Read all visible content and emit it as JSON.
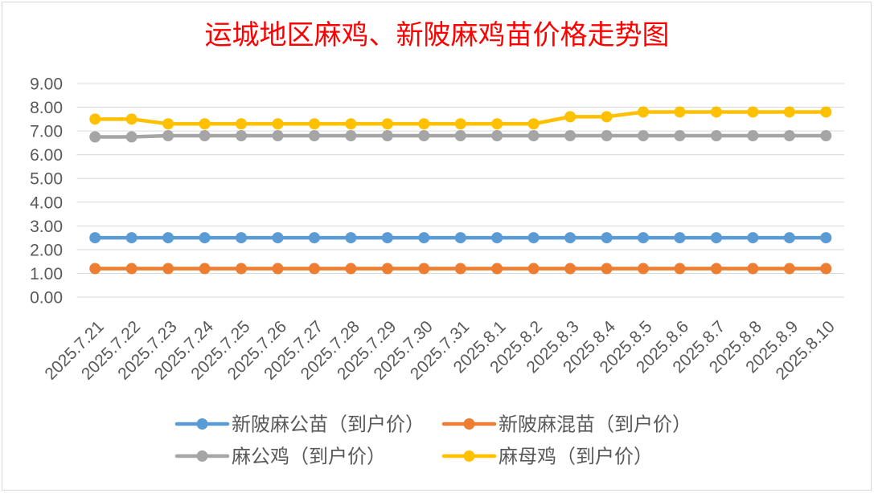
{
  "colors": {
    "title": "#FF0000",
    "axis_text": "#595959",
    "gridline": "#D9D9D9",
    "chart_border": "#D9D9D9"
  },
  "chart_data": {
    "type": "line",
    "title": "运城地区麻鸡、新陂麻鸡苗价格走势图",
    "categories": [
      "2025.7.21",
      "2025.7.22",
      "2025.7.23",
      "2025.7.24",
      "2025.7.25",
      "2025.7.26",
      "2025.7.27",
      "2025.7.28",
      "2025.7.29",
      "2025.7.30",
      "2025.7.31",
      "2025.8.1",
      "2025.8.2",
      "2025.8.3",
      "2025.8.4",
      "2025.8.5",
      "2025.8.6",
      "2025.8.7",
      "2025.8.8",
      "2025.8.9",
      "2025.8.10"
    ],
    "ylim": [
      0,
      9
    ],
    "yticks": [
      "0.00",
      "1.00",
      "2.00",
      "3.00",
      "4.00",
      "5.00",
      "6.00",
      "7.00",
      "8.00",
      "9.00"
    ],
    "grid": true,
    "legend_position": "bottom",
    "series": [
      {
        "name": "新陂麻公苗（到户价）",
        "color": "#5B9BD5",
        "values": [
          2.5,
          2.5,
          2.5,
          2.5,
          2.5,
          2.5,
          2.5,
          2.5,
          2.5,
          2.5,
          2.5,
          2.5,
          2.5,
          2.5,
          2.5,
          2.5,
          2.5,
          2.5,
          2.5,
          2.5,
          2.5
        ]
      },
      {
        "name": "新陂麻混苗（到户价）",
        "color": "#ED7D31",
        "values": [
          1.2,
          1.2,
          1.2,
          1.2,
          1.2,
          1.2,
          1.2,
          1.2,
          1.2,
          1.2,
          1.2,
          1.2,
          1.2,
          1.2,
          1.2,
          1.2,
          1.2,
          1.2,
          1.2,
          1.2,
          1.2
        ]
      },
      {
        "name": "麻公鸡（到户价）",
        "color": "#A5A5A5",
        "values": [
          6.75,
          6.75,
          6.8,
          6.8,
          6.8,
          6.8,
          6.8,
          6.8,
          6.8,
          6.8,
          6.8,
          6.8,
          6.8,
          6.8,
          6.8,
          6.8,
          6.8,
          6.8,
          6.8,
          6.8,
          6.8
        ]
      },
      {
        "name": "麻母鸡（到户价）",
        "color": "#FFC000",
        "values": [
          7.5,
          7.5,
          7.3,
          7.3,
          7.3,
          7.3,
          7.3,
          7.3,
          7.3,
          7.3,
          7.3,
          7.3,
          7.3,
          7.6,
          7.6,
          7.8,
          7.8,
          7.8,
          7.8,
          7.8,
          7.8
        ]
      }
    ]
  }
}
